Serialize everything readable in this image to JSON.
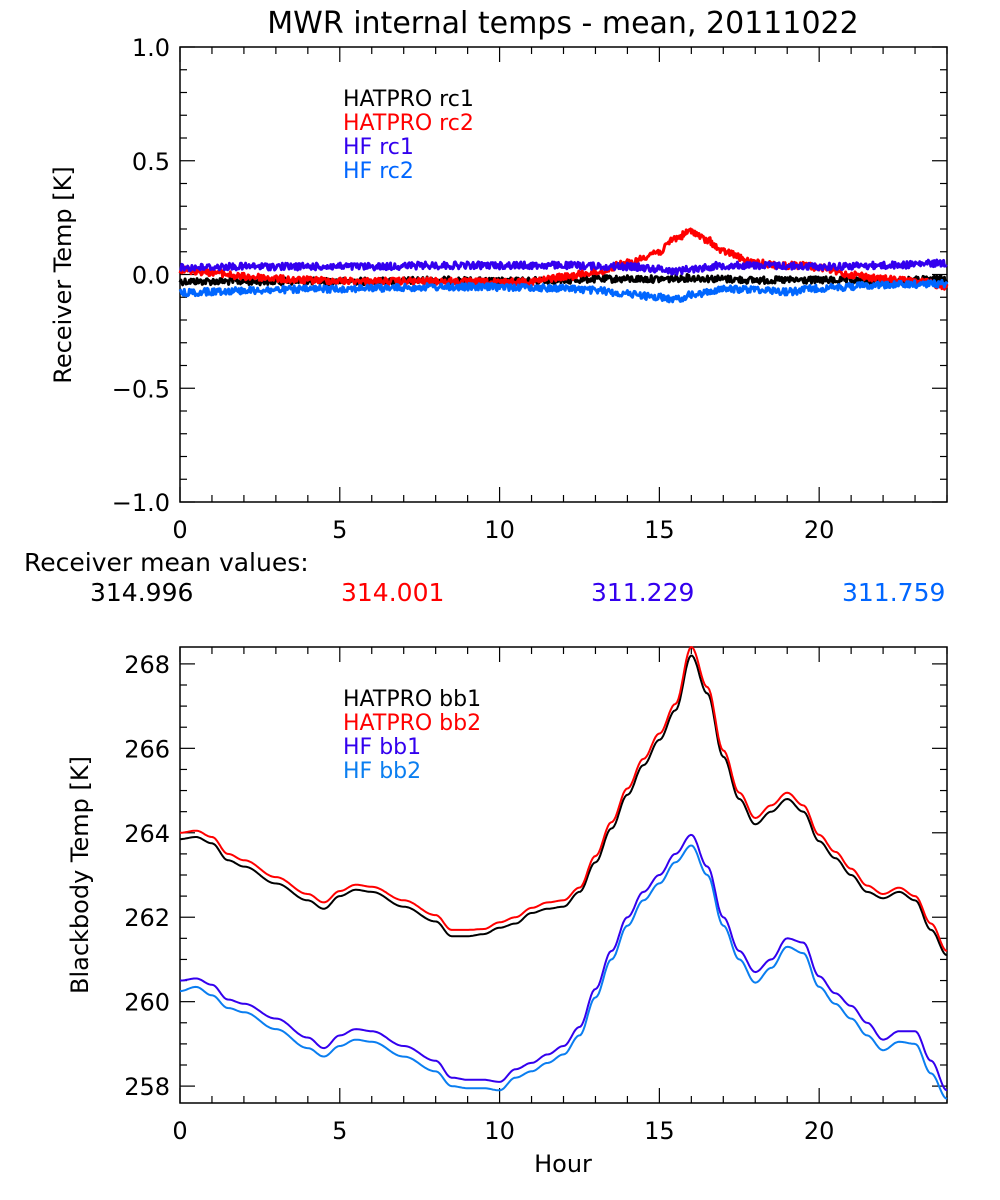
{
  "chart_data": [
    {
      "type": "line",
      "title": "MWR internal temps - mean, 20111022",
      "xlabel": "",
      "ylabel": "Receiver Temp [K]",
      "xlim": [
        0,
        24
      ],
      "ylim": [
        -1.0,
        1.0
      ],
      "xticks": [
        0,
        5,
        10,
        15,
        20
      ],
      "xtick_labels": [
        "0",
        "5",
        "10",
        "15",
        "20"
      ],
      "yticks": [
        -1.0,
        -0.5,
        0.0,
        0.5,
        1.0
      ],
      "ytick_labels": [
        "−1.0",
        "−0.5",
        "0.0",
        "0.5",
        "1.0"
      ],
      "grid": false,
      "legend_position": "top-left-center",
      "series": [
        {
          "name": "HATPRO rc1",
          "color": "#000000",
          "x": [
            0,
            2,
            4,
            6,
            8,
            10,
            12,
            13,
            14,
            15,
            16,
            17,
            18,
            19,
            20,
            22,
            24
          ],
          "y": [
            -0.03,
            -0.03,
            -0.03,
            -0.03,
            -0.025,
            -0.03,
            -0.025,
            -0.02,
            -0.02,
            -0.02,
            -0.015,
            -0.02,
            -0.025,
            -0.025,
            -0.025,
            -0.03,
            -0.02
          ]
        },
        {
          "name": "HATPRO rc2",
          "color": "#ff0000",
          "x": [
            0,
            1,
            2,
            4,
            6,
            8,
            10,
            11,
            12,
            13,
            14,
            15,
            15.5,
            16,
            16.5,
            17,
            18,
            19,
            19.5,
            20,
            21,
            22,
            23,
            24
          ],
          "y": [
            0.02,
            0.01,
            -0.01,
            -0.025,
            -0.03,
            -0.03,
            -0.035,
            -0.03,
            -0.01,
            0.01,
            0.05,
            0.1,
            0.16,
            0.19,
            0.15,
            0.1,
            0.05,
            0.04,
            0.04,
            0.03,
            0.0,
            -0.02,
            -0.03,
            -0.05
          ]
        },
        {
          "name": "HF rc1",
          "color": "#3300ee",
          "x": [
            0,
            2,
            4,
            6,
            8,
            10,
            12,
            14,
            15,
            15.5,
            16,
            17,
            18,
            20,
            22,
            24
          ],
          "y": [
            0.03,
            0.035,
            0.035,
            0.035,
            0.04,
            0.04,
            0.04,
            0.035,
            0.025,
            0.015,
            0.025,
            0.04,
            0.04,
            0.035,
            0.04,
            0.05
          ]
        },
        {
          "name": "HF rc2",
          "color": "#0066ff",
          "x": [
            0,
            2,
            4,
            6,
            8,
            10,
            12,
            13,
            14,
            15,
            15.5,
            16,
            17,
            18,
            19,
            20,
            22,
            24
          ],
          "y": [
            -0.08,
            -0.07,
            -0.065,
            -0.06,
            -0.055,
            -0.055,
            -0.06,
            -0.07,
            -0.085,
            -0.1,
            -0.11,
            -0.09,
            -0.065,
            -0.065,
            -0.075,
            -0.06,
            -0.045,
            -0.04
          ]
        }
      ],
      "annotations": {
        "mean_label": "Receiver mean values:",
        "mean_values": [
          {
            "value": "314.996",
            "color": "#000000"
          },
          {
            "value": "314.001",
            "color": "#ff0000"
          },
          {
            "value": "311.229",
            "color": "#3300ee"
          },
          {
            "value": "311.759",
            "color": "#0066ff"
          }
        ]
      }
    },
    {
      "type": "line",
      "title": "",
      "xlabel": "Hour",
      "ylabel": "Blackbody Temp [K]",
      "xlim": [
        0,
        24
      ],
      "ylim": [
        257.6,
        268.4
      ],
      "xticks": [
        0,
        5,
        10,
        15,
        20
      ],
      "xtick_labels": [
        "0",
        "5",
        "10",
        "15",
        "20"
      ],
      "yticks": [
        258,
        260,
        262,
        264,
        266,
        268
      ],
      "ytick_labels": [
        "258",
        "260",
        "262",
        "264",
        "266",
        "268"
      ],
      "grid": false,
      "legend_position": "top-left-center",
      "series": [
        {
          "name": "HATPRO bb1",
          "color": "#000000",
          "x": [
            0,
            0.5,
            1,
            1.5,
            2,
            3,
            4,
            4.5,
            5,
            5.5,
            6,
            7,
            8,
            8.5,
            9,
            9.5,
            10,
            10.5,
            11,
            11.5,
            12,
            12.5,
            13,
            13.5,
            14,
            14.5,
            15,
            15.5,
            16,
            16.5,
            17,
            17.5,
            18,
            18.5,
            19,
            19.5,
            20,
            20.5,
            21,
            21.5,
            22,
            22.5,
            23,
            23.5,
            24
          ],
          "y": [
            263.85,
            263.9,
            263.75,
            263.35,
            263.2,
            262.8,
            262.4,
            262.2,
            262.5,
            262.65,
            262.6,
            262.25,
            261.9,
            261.55,
            261.55,
            261.6,
            261.75,
            261.85,
            262.1,
            262.2,
            262.25,
            262.6,
            263.3,
            264.1,
            264.9,
            265.6,
            266.2,
            266.9,
            268.2,
            267.3,
            265.8,
            264.8,
            264.2,
            264.5,
            264.8,
            264.5,
            263.8,
            263.4,
            263.0,
            262.6,
            262.45,
            262.6,
            262.4,
            261.7,
            261.1
          ]
        },
        {
          "name": "HATPRO bb2",
          "color": "#ff0000",
          "x": [
            0,
            0.5,
            1,
            1.5,
            2,
            3,
            4,
            4.5,
            5,
            5.5,
            6,
            7,
            8,
            8.5,
            9,
            9.5,
            10,
            10.5,
            11,
            11.5,
            12,
            12.5,
            13,
            13.5,
            14,
            14.5,
            15,
            15.5,
            16,
            16.5,
            17,
            17.5,
            18,
            18.5,
            19,
            19.5,
            20,
            20.5,
            21,
            21.5,
            22,
            22.5,
            23,
            23.5,
            24
          ],
          "y": [
            264.0,
            264.05,
            263.9,
            263.5,
            263.35,
            262.95,
            262.55,
            262.35,
            262.62,
            262.77,
            262.72,
            262.4,
            262.05,
            261.7,
            261.7,
            261.72,
            261.88,
            262.0,
            262.22,
            262.35,
            262.4,
            262.7,
            263.45,
            264.25,
            265.05,
            265.75,
            266.35,
            267.05,
            268.4,
            267.45,
            265.95,
            264.95,
            264.35,
            264.65,
            264.95,
            264.65,
            263.95,
            263.55,
            263.15,
            262.75,
            262.55,
            262.7,
            262.5,
            261.85,
            261.2
          ]
        },
        {
          "name": "HF bb1",
          "color": "#3300ee",
          "x": [
            0,
            0.5,
            1,
            1.5,
            2,
            3,
            4,
            4.5,
            5,
            5.5,
            6,
            7,
            8,
            8.5,
            9,
            9.5,
            10,
            10.5,
            11,
            11.5,
            12,
            12.5,
            13,
            13.5,
            14,
            14.5,
            15,
            15.5,
            16,
            16.5,
            17,
            17.5,
            18,
            18.5,
            19,
            19.5,
            20,
            20.5,
            21,
            21.5,
            22,
            22.5,
            23,
            23.5,
            24
          ],
          "y": [
            260.5,
            260.55,
            260.4,
            260.05,
            259.95,
            259.6,
            259.15,
            258.9,
            259.2,
            259.35,
            259.3,
            258.95,
            258.6,
            258.2,
            258.15,
            258.15,
            258.1,
            258.4,
            258.55,
            258.75,
            258.95,
            259.4,
            260.3,
            261.2,
            262.0,
            262.6,
            263.0,
            263.5,
            263.95,
            263.2,
            262.0,
            261.2,
            260.7,
            261.0,
            261.5,
            261.4,
            260.6,
            260.2,
            259.9,
            259.5,
            259.1,
            259.3,
            259.3,
            258.6,
            257.9
          ]
        },
        {
          "name": "HF bb2",
          "color": "#0a7ef0",
          "x": [
            0,
            0.5,
            1,
            1.5,
            2,
            3,
            4,
            4.5,
            5,
            5.5,
            6,
            7,
            8,
            8.5,
            9,
            9.5,
            10,
            10.5,
            11,
            11.5,
            12,
            12.5,
            13,
            13.5,
            14,
            14.5,
            15,
            15.5,
            16,
            16.5,
            17,
            17.5,
            18,
            18.5,
            19,
            19.5,
            20,
            20.5,
            21,
            21.5,
            22,
            22.5,
            23,
            23.5,
            24
          ],
          "y": [
            260.25,
            260.35,
            260.15,
            259.85,
            259.75,
            259.35,
            258.9,
            258.7,
            258.95,
            259.1,
            259.05,
            258.7,
            258.35,
            258.0,
            257.95,
            257.95,
            257.9,
            258.2,
            258.35,
            258.55,
            258.75,
            259.2,
            260.1,
            261.0,
            261.8,
            262.4,
            262.8,
            263.3,
            263.7,
            263.0,
            261.8,
            261.0,
            260.45,
            260.8,
            261.3,
            261.15,
            260.35,
            259.95,
            259.6,
            259.2,
            258.85,
            259.05,
            259.0,
            258.3,
            257.7
          ]
        }
      ]
    }
  ]
}
